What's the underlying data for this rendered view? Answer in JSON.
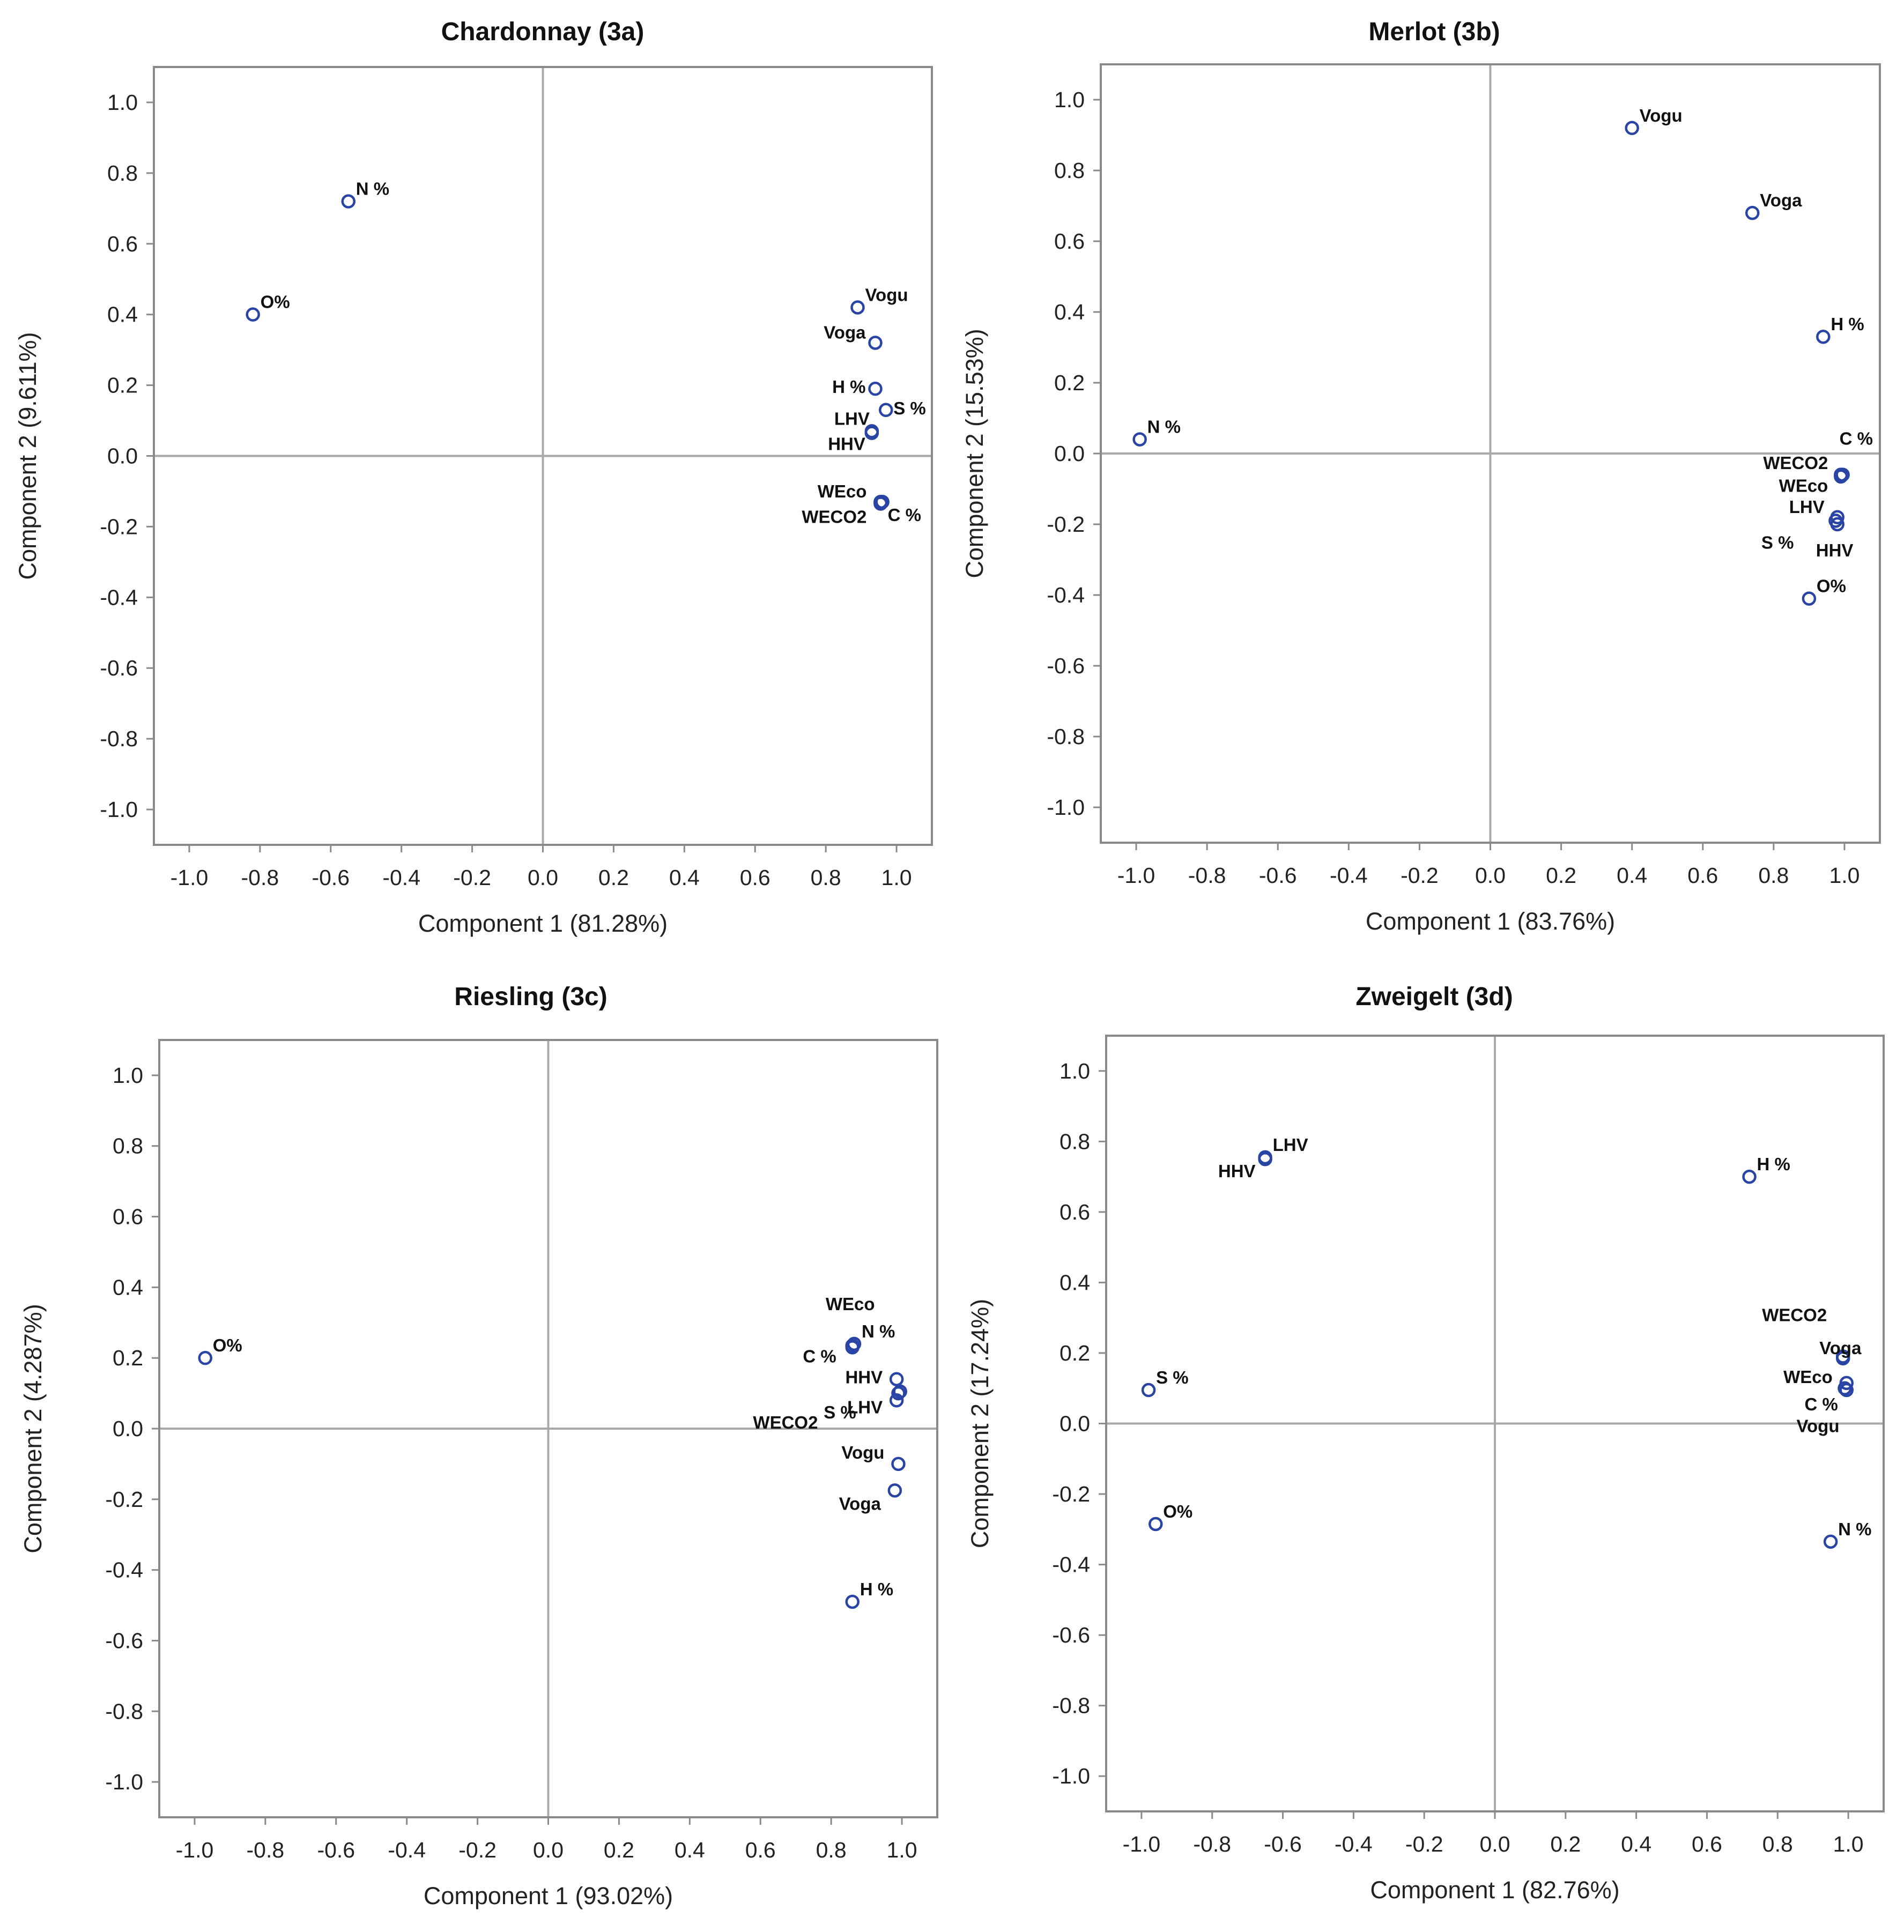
{
  "chart_data": [
    {
      "type": "scatter",
      "title": "Chardonnay (3a)",
      "xlabel": "Component 1 (81.28%)",
      "ylabel": "Component 2 (9.611%)",
      "xlim": [
        -1.1,
        1.1
      ],
      "ylim": [
        -1.1,
        1.1
      ],
      "xticks": [
        "-1.0",
        "-0.8",
        "-0.6",
        "-0.4",
        "-0.2",
        "0.0",
        "0.2",
        "0.4",
        "0.6",
        "0.8",
        "1.0"
      ],
      "yticks": [
        "1.0",
        "0.8",
        "0.6",
        "0.4",
        "0.2",
        "0.0",
        "-0.2",
        "-0.4",
        "-0.6",
        "-0.8",
        "-1.0"
      ],
      "points": [
        {
          "x": -0.55,
          "y": 0.72,
          "label": "N %"
        },
        {
          "x": -0.82,
          "y": 0.4,
          "label": "O%"
        },
        {
          "x": 0.89,
          "y": 0.42,
          "label": "Vogu"
        },
        {
          "x": 0.94,
          "y": 0.32,
          "label": "Voga"
        },
        {
          "x": 0.94,
          "y": 0.19,
          "label": "H %"
        },
        {
          "x": 0.97,
          "y": 0.13,
          "label": "S %"
        },
        {
          "x": 0.93,
          "y": 0.07,
          "label": "LHV"
        },
        {
          "x": 0.93,
          "y": 0.065,
          "label": "HHV"
        },
        {
          "x": 0.955,
          "y": -0.13,
          "label": "WEco"
        },
        {
          "x": 0.955,
          "y": -0.135,
          "label": "WECO2"
        },
        {
          "x": 0.96,
          "y": -0.13,
          "label": "C %"
        }
      ]
    },
    {
      "type": "scatter",
      "title": "Merlot (3b)",
      "xlabel": "Component 1 (83.76%)",
      "ylabel": "Component 2 (15.53%)",
      "xlim": [
        -1.1,
        1.1
      ],
      "ylim": [
        -1.1,
        1.1
      ],
      "xticks": [
        "-1.0",
        "-0.8",
        "-0.6",
        "-0.4",
        "-0.2",
        "0.0",
        "0.2",
        "0.4",
        "0.6",
        "0.8",
        "1.0"
      ],
      "yticks": [
        "1.0",
        "0.8",
        "0.6",
        "0.4",
        "0.2",
        "0.0",
        "-0.2",
        "-0.4",
        "-0.6",
        "-0.8",
        "-1.0"
      ],
      "points": [
        {
          "x": 0.4,
          "y": 0.92,
          "label": "Vogu"
        },
        {
          "x": 0.74,
          "y": 0.68,
          "label": "Voga"
        },
        {
          "x": 0.94,
          "y": 0.33,
          "label": "H %"
        },
        {
          "x": -0.99,
          "y": 0.04,
          "label": "N %"
        },
        {
          "x": 0.995,
          "y": -0.06,
          "label": "C %"
        },
        {
          "x": 0.99,
          "y": -0.065,
          "label": "WECO2"
        },
        {
          "x": 0.99,
          "y": -0.06,
          "label": "WEco"
        },
        {
          "x": 0.98,
          "y": -0.18,
          "label": "LHV"
        },
        {
          "x": 0.98,
          "y": -0.2,
          "label": "HHV"
        },
        {
          "x": 0.975,
          "y": -0.19,
          "label": "S %"
        },
        {
          "x": 0.9,
          "y": -0.41,
          "label": "O%"
        }
      ]
    },
    {
      "type": "scatter",
      "title": "Riesling (3c)",
      "xlabel": "Component 1 (93.02%)",
      "ylabel": "Component 2 (4.287%)",
      "xlim": [
        -1.1,
        1.1
      ],
      "ylim": [
        -1.1,
        1.1
      ],
      "xticks": [
        "-1.0",
        "-0.8",
        "-0.6",
        "-0.4",
        "-0.2",
        "0.0",
        "0.2",
        "0.4",
        "0.6",
        "0.8",
        "1.0"
      ],
      "yticks": [
        "1.0",
        "0.8",
        "0.6",
        "0.4",
        "0.2",
        "0.0",
        "-0.2",
        "-0.4",
        "-0.6",
        "-0.8",
        "-1.0"
      ],
      "points": [
        {
          "x": -0.97,
          "y": 0.2,
          "label": "O%"
        },
        {
          "x": 0.86,
          "y": 0.235,
          "label": "WEco"
        },
        {
          "x": 0.865,
          "y": 0.24,
          "label": "N %"
        },
        {
          "x": 0.86,
          "y": 0.23,
          "label": "C %"
        },
        {
          "x": 0.985,
          "y": 0.14,
          "label": "HHV"
        },
        {
          "x": 0.995,
          "y": 0.105,
          "label": "S %"
        },
        {
          "x": 0.985,
          "y": 0.08,
          "label": "LHV"
        },
        {
          "x": 0.99,
          "y": 0.1,
          "label": "WECO2"
        },
        {
          "x": 0.99,
          "y": -0.1,
          "label": "Vogu"
        },
        {
          "x": 0.98,
          "y": -0.175,
          "label": "Voga"
        },
        {
          "x": 0.86,
          "y": -0.49,
          "label": "H %"
        }
      ]
    },
    {
      "type": "scatter",
      "title": "Zweigelt (3d)",
      "xlabel": "Component 1 (82.76%)",
      "ylabel": "Component 2 (17.24%)",
      "xlim": [
        -1.1,
        1.1
      ],
      "ylim": [
        -1.1,
        1.1
      ],
      "xticks": [
        "-1.0",
        "-0.8",
        "-0.6",
        "-0.4",
        "-0.2",
        "0.0",
        "0.2",
        "0.4",
        "0.6",
        "0.8",
        "1.0"
      ],
      "yticks": [
        "1.0",
        "0.8",
        "0.6",
        "0.4",
        "0.2",
        "0.0",
        "-0.2",
        "-0.4",
        "-0.6",
        "-0.8",
        "-1.0"
      ],
      "points": [
        {
          "x": -0.65,
          "y": 0.755,
          "label": "LHV"
        },
        {
          "x": -0.65,
          "y": 0.75,
          "label": "HHV"
        },
        {
          "x": 0.72,
          "y": 0.7,
          "label": "H %"
        },
        {
          "x": 0.985,
          "y": 0.19,
          "label": "WECO2"
        },
        {
          "x": 0.985,
          "y": 0.185,
          "label": "Voga"
        },
        {
          "x": 0.995,
          "y": 0.115,
          "label": "WEco"
        },
        {
          "x": 0.995,
          "y": 0.095,
          "label": "C %"
        },
        {
          "x": 0.99,
          "y": 0.1,
          "label": "Vogu"
        },
        {
          "x": -0.98,
          "y": 0.095,
          "label": "S %"
        },
        {
          "x": -0.96,
          "y": -0.285,
          "label": "O%"
        },
        {
          "x": 0.95,
          "y": -0.335,
          "label": "N %"
        }
      ]
    }
  ]
}
